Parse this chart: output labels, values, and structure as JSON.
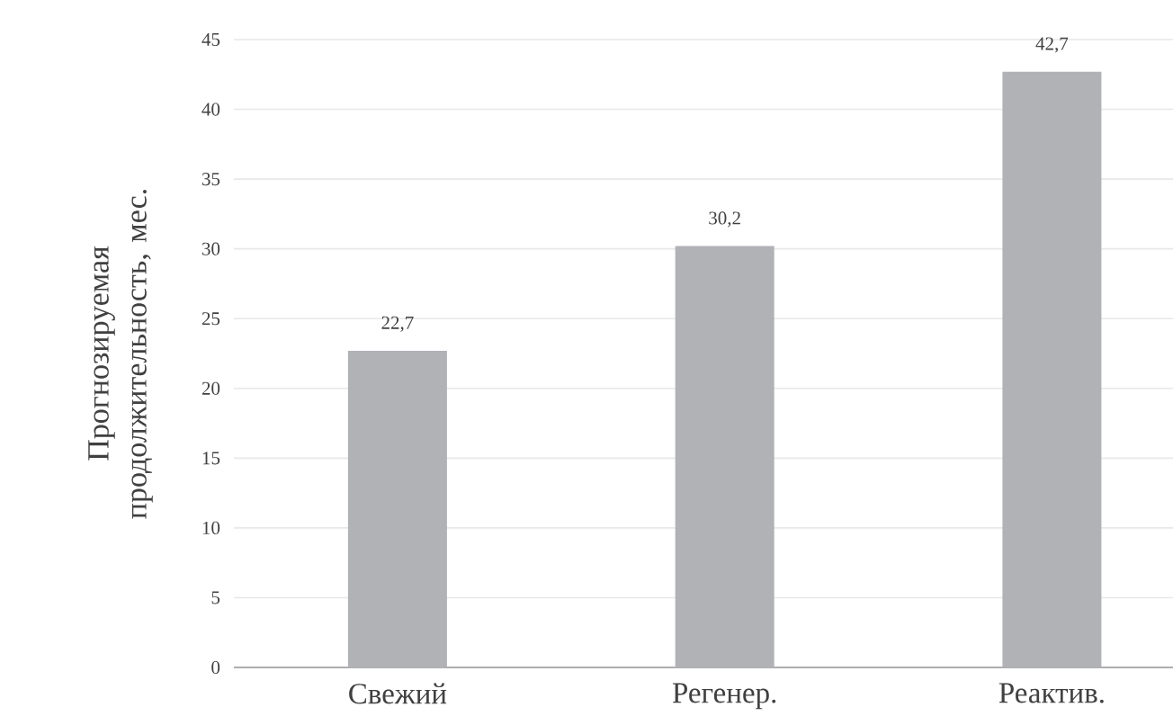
{
  "chart_data": {
    "type": "bar",
    "ylabel": "Прогнозируемая продолжительность, мес.",
    "categories": [
      "Свежий",
      "Регенер.",
      "Реактив."
    ],
    "values": [
      22.7,
      30.2,
      42.7
    ],
    "value_labels": [
      "22,7",
      "30,2",
      "42,7"
    ],
    "color": "#b1b2b6",
    "ylim": [
      0,
      45
    ],
    "yticks": [
      0,
      5,
      10,
      15,
      20,
      25,
      30,
      35,
      40,
      45
    ],
    "grid": "y"
  }
}
